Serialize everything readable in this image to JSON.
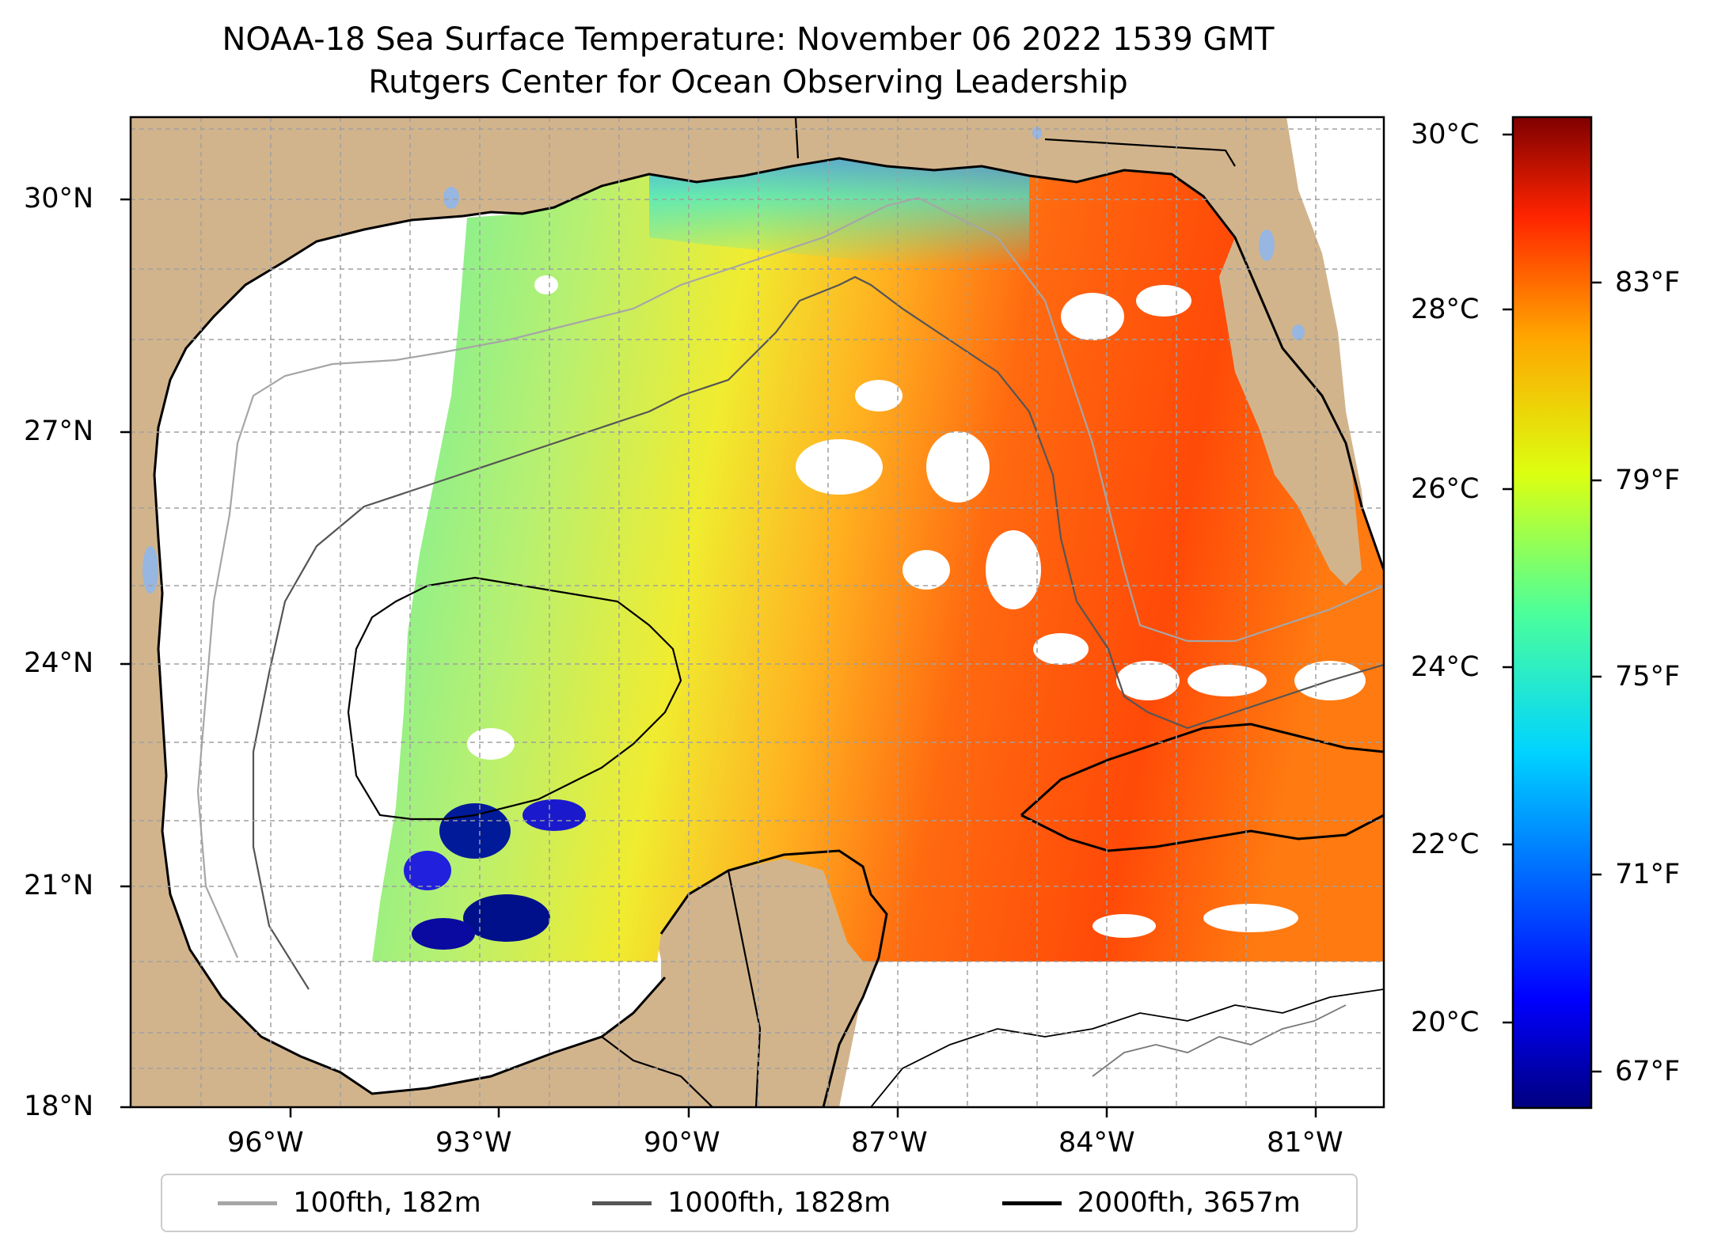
{
  "title": {
    "line1": "NOAA-18 Sea Surface Temperature: November 06 2022 1539 GMT",
    "line2": "Rutgers Center for Ocean Observing Leadership"
  },
  "axes": {
    "lon_ticks": [
      "96°W",
      "93°W",
      "90°W",
      "87°W",
      "84°W",
      "81°W"
    ],
    "lat_ticks": [
      "30°N",
      "27°N",
      "24°N",
      "21°N",
      "18°N"
    ]
  },
  "colorbar": {
    "celsius_ticks": [
      "30°C",
      "28°C",
      "26°C",
      "24°C",
      "22°C",
      "20°C"
    ],
    "fahrenheit_ticks": [
      "83°F",
      "79°F",
      "75°F",
      "71°F",
      "67°F"
    ],
    "colormap": "jet",
    "range_c": [
      19.0,
      30.2
    ]
  },
  "legend": {
    "items": [
      {
        "label": "100fth, 182m",
        "color": "#a6a6a6"
      },
      {
        "label": "1000fth, 1828m",
        "color": "#555555"
      },
      {
        "label": "2000fth, 3657m",
        "color": "#000000"
      }
    ]
  },
  "colors": {
    "land": "#d2b48c",
    "water_no_data": "#ffffff",
    "inland_water": "#97b6e1"
  }
}
